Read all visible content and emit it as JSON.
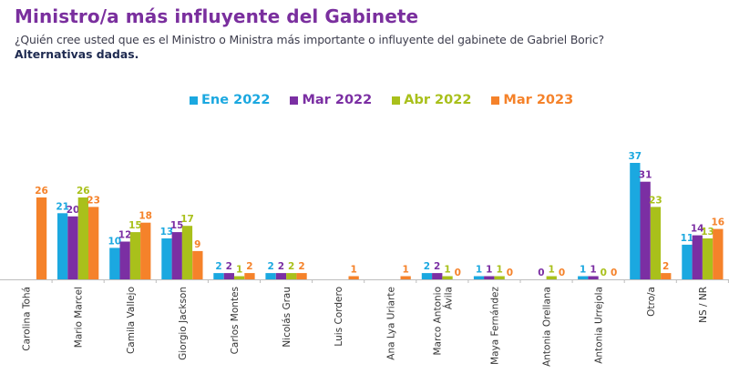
{
  "header": {
    "title": "Ministro/a más influyente del Gabinete",
    "subtitle": "¿Quién cree usted que es el Ministro o Ministra más importante o influyente del gabinete de Gabriel Boric?",
    "note": "Alternativas dadas."
  },
  "colors": {
    "title": "#7a2f9e",
    "ene2022": "#1ba8e0",
    "mar2022": "#7b2fa3",
    "abr2022": "#a9c01b",
    "mar2023": "#f5822a"
  },
  "chart_data": {
    "type": "bar",
    "title": "Ministro/a más influyente del Gabinete",
    "xlabel": "",
    "ylabel": "",
    "ylim": [
      0,
      40
    ],
    "grid": false,
    "legend_position": "top-center",
    "categories": [
      [
        "Carolina Tohá"
      ],
      [
        "Mario Marcel"
      ],
      [
        "Camila Vallejo"
      ],
      [
        "Giorgio Jackson"
      ],
      [
        "Carlos Montes"
      ],
      [
        "Nicolás Grau"
      ],
      [
        "Luis Cordero"
      ],
      [
        "Ana Lya Uriarte"
      ],
      [
        "Marco Antonio",
        "Ávila"
      ],
      [
        "Maya Fernández"
      ],
      [
        "Antonia Orellana"
      ],
      [
        "Antonia Urrejola"
      ],
      [
        "Otro/a"
      ],
      [
        "NS / NR"
      ]
    ],
    "series": [
      {
        "name": "Ene 2022",
        "color": "#1ba8e0",
        "values": [
          null,
          21,
          10,
          13,
          2,
          2,
          null,
          null,
          2,
          1,
          null,
          1,
          37,
          11
        ]
      },
      {
        "name": "Mar 2022",
        "color": "#7b2fa3",
        "values": [
          null,
          20,
          12,
          15,
          2,
          2,
          null,
          null,
          2,
          1,
          0,
          1,
          31,
          14
        ]
      },
      {
        "name": "Abr 2022",
        "color": "#a9c01b",
        "values": [
          null,
          26,
          15,
          17,
          1,
          2,
          null,
          null,
          1,
          1,
          1,
          0,
          23,
          13
        ]
      },
      {
        "name": "Mar 2023",
        "color": "#f5822a",
        "values": [
          26,
          23,
          18,
          9,
          2,
          2,
          1,
          1,
          0,
          0,
          0,
          0,
          2,
          16
        ]
      }
    ]
  }
}
